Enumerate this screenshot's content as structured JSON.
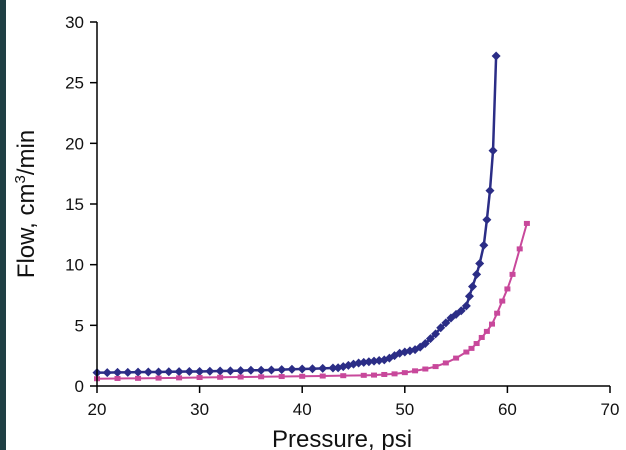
{
  "chart_data": {
    "type": "line",
    "title": "",
    "xlabel": "Pressure, psi",
    "ylabel": {
      "prefix": "Flow, cm",
      "sup": "3",
      "suffix": "/min"
    },
    "xlim": [
      20,
      70
    ],
    "ylim": [
      0,
      30
    ],
    "x_ticks": [
      "20",
      "30",
      "40",
      "50",
      "60",
      "70"
    ],
    "y_ticks": [
      "0",
      "5",
      "10",
      "15",
      "20",
      "25",
      "30"
    ],
    "grid": false,
    "legend": "none",
    "series": [
      {
        "marker": "diamond",
        "color": "#2b2d86",
        "points": [
          [
            20,
            1.1
          ],
          [
            21,
            1.1
          ],
          [
            22,
            1.12
          ],
          [
            23,
            1.12
          ],
          [
            24,
            1.14
          ],
          [
            25,
            1.15
          ],
          [
            26,
            1.15
          ],
          [
            27,
            1.17
          ],
          [
            28,
            1.18
          ],
          [
            29,
            1.2
          ],
          [
            30,
            1.2
          ],
          [
            31,
            1.22
          ],
          [
            32,
            1.24
          ],
          [
            33,
            1.25
          ],
          [
            34,
            1.27
          ],
          [
            35,
            1.3
          ],
          [
            36,
            1.3
          ],
          [
            37,
            1.32
          ],
          [
            38,
            1.35
          ],
          [
            39,
            1.38
          ],
          [
            40,
            1.4
          ],
          [
            41,
            1.42
          ],
          [
            42,
            1.45
          ],
          [
            43,
            1.48
          ],
          [
            43.5,
            1.5
          ],
          [
            44,
            1.6
          ],
          [
            44.5,
            1.7
          ],
          [
            45,
            1.8
          ],
          [
            45.5,
            1.9
          ],
          [
            46,
            1.95
          ],
          [
            46.5,
            2.0
          ],
          [
            47,
            2.05
          ],
          [
            47.5,
            2.1
          ],
          [
            48,
            2.15
          ],
          [
            48.5,
            2.3
          ],
          [
            49,
            2.5
          ],
          [
            49.5,
            2.7
          ],
          [
            50,
            2.8
          ],
          [
            50.5,
            2.9
          ],
          [
            51,
            3.0
          ],
          [
            51.5,
            3.2
          ],
          [
            52,
            3.5
          ],
          [
            52.5,
            3.9
          ],
          [
            53,
            4.3
          ],
          [
            53.5,
            4.8
          ],
          [
            54,
            5.2
          ],
          [
            54.5,
            5.6
          ],
          [
            55,
            5.9
          ],
          [
            55.5,
            6.2
          ],
          [
            56,
            6.6
          ],
          [
            56.3,
            7.4
          ],
          [
            56.6,
            8.2
          ],
          [
            57,
            9.2
          ],
          [
            57.3,
            10.1
          ],
          [
            57.7,
            11.6
          ],
          [
            58,
            13.7
          ],
          [
            58.3,
            16.1
          ],
          [
            58.6,
            19.4
          ],
          [
            58.9,
            27.2
          ]
        ]
      },
      {
        "marker": "square",
        "color": "#c8489b",
        "points": [
          [
            20,
            0.6
          ],
          [
            22,
            0.62
          ],
          [
            24,
            0.63
          ],
          [
            26,
            0.65
          ],
          [
            28,
            0.67
          ],
          [
            30,
            0.7
          ],
          [
            32,
            0.72
          ],
          [
            34,
            0.74
          ],
          [
            36,
            0.76
          ],
          [
            38,
            0.78
          ],
          [
            40,
            0.8
          ],
          [
            42,
            0.82
          ],
          [
            44,
            0.85
          ],
          [
            46,
            0.88
          ],
          [
            47,
            0.9
          ],
          [
            48,
            0.95
          ],
          [
            49,
            1.0
          ],
          [
            50,
            1.1
          ],
          [
            51,
            1.25
          ],
          [
            52,
            1.4
          ],
          [
            53,
            1.6
          ],
          [
            54,
            1.9
          ],
          [
            55,
            2.3
          ],
          [
            56,
            2.8
          ],
          [
            56.5,
            3.1
          ],
          [
            57,
            3.5
          ],
          [
            57.5,
            4.0
          ],
          [
            58,
            4.5
          ],
          [
            58.5,
            5.1
          ],
          [
            59,
            6.0
          ],
          [
            59.5,
            7.0
          ],
          [
            60,
            8.0
          ],
          [
            60.5,
            9.2
          ],
          [
            61.2,
            11.3
          ],
          [
            61.9,
            13.4
          ]
        ]
      }
    ]
  }
}
